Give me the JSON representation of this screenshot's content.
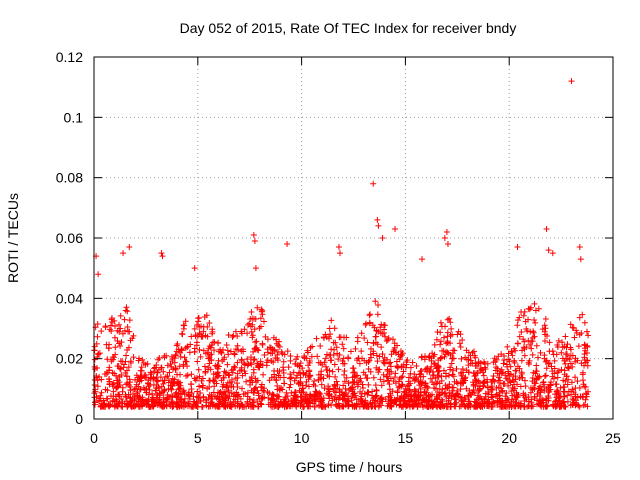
{
  "chart_data": {
    "type": "scatter",
    "title": "Day 052 of 2015, Rate Of TEC Index for receiver bndy",
    "xlabel": "GPS time / hours",
    "ylabel": "ROTI / TECUs",
    "xlim": [
      0,
      25
    ],
    "ylim": [
      0,
      0.12
    ],
    "x_ticks": [
      "0",
      "5",
      "10",
      "15",
      "20",
      "25"
    ],
    "y_ticks": [
      "0",
      "0.02",
      "0.04",
      "0.06",
      "0.08",
      "0.1",
      "0.12"
    ],
    "x_tick_values": [
      0,
      5,
      10,
      15,
      20,
      25
    ],
    "y_tick_values": [
      0,
      0.02,
      0.04,
      0.06,
      0.08,
      0.1,
      0.12
    ],
    "grid": true,
    "marker": "+",
    "color": "#ff0000",
    "x_data_range": [
      0,
      23.8
    ],
    "typical_y_range": [
      0.004,
      0.04
    ],
    "envelope": [
      {
        "x": 0.0,
        "y": 0.03
      },
      {
        "x": 0.5,
        "y": 0.035
      },
      {
        "x": 1.0,
        "y": 0.033
      },
      {
        "x": 1.5,
        "y": 0.04
      },
      {
        "x": 2.0,
        "y": 0.025
      },
      {
        "x": 2.5,
        "y": 0.018
      },
      {
        "x": 3.0,
        "y": 0.02
      },
      {
        "x": 3.5,
        "y": 0.022
      },
      {
        "x": 4.0,
        "y": 0.025
      },
      {
        "x": 4.5,
        "y": 0.035
      },
      {
        "x": 5.0,
        "y": 0.04
      },
      {
        "x": 5.5,
        "y": 0.035
      },
      {
        "x": 6.0,
        "y": 0.025
      },
      {
        "x": 6.5,
        "y": 0.028
      },
      {
        "x": 7.0,
        "y": 0.03
      },
      {
        "x": 7.5,
        "y": 0.035
      },
      {
        "x": 8.0,
        "y": 0.038
      },
      {
        "x": 8.5,
        "y": 0.03
      },
      {
        "x": 9.0,
        "y": 0.025
      },
      {
        "x": 9.5,
        "y": 0.022
      },
      {
        "x": 10.0,
        "y": 0.02
      },
      {
        "x": 10.5,
        "y": 0.025
      },
      {
        "x": 11.0,
        "y": 0.03
      },
      {
        "x": 11.5,
        "y": 0.035
      },
      {
        "x": 12.0,
        "y": 0.028
      },
      {
        "x": 12.5,
        "y": 0.025
      },
      {
        "x": 13.0,
        "y": 0.03
      },
      {
        "x": 13.5,
        "y": 0.04
      },
      {
        "x": 14.0,
        "y": 0.035
      },
      {
        "x": 14.5,
        "y": 0.025
      },
      {
        "x": 15.0,
        "y": 0.022
      },
      {
        "x": 15.5,
        "y": 0.02
      },
      {
        "x": 16.0,
        "y": 0.022
      },
      {
        "x": 16.5,
        "y": 0.028
      },
      {
        "x": 17.0,
        "y": 0.038
      },
      {
        "x": 17.5,
        "y": 0.03
      },
      {
        "x": 18.0,
        "y": 0.025
      },
      {
        "x": 18.5,
        "y": 0.022
      },
      {
        "x": 19.0,
        "y": 0.02
      },
      {
        "x": 19.5,
        "y": 0.022
      },
      {
        "x": 20.0,
        "y": 0.025
      },
      {
        "x": 20.5,
        "y": 0.035
      },
      {
        "x": 21.0,
        "y": 0.04
      },
      {
        "x": 21.5,
        "y": 0.038
      },
      {
        "x": 22.0,
        "y": 0.03
      },
      {
        "x": 22.5,
        "y": 0.025
      },
      {
        "x": 23.0,
        "y": 0.032
      },
      {
        "x": 23.5,
        "y": 0.035
      },
      {
        "x": 23.8,
        "y": 0.03
      }
    ],
    "outliers": [
      {
        "x": 0.1,
        "y": 0.054
      },
      {
        "x": 0.2,
        "y": 0.048
      },
      {
        "x": 1.4,
        "y": 0.055
      },
      {
        "x": 1.7,
        "y": 0.057
      },
      {
        "x": 3.25,
        "y": 0.055
      },
      {
        "x": 3.3,
        "y": 0.054
      },
      {
        "x": 4.85,
        "y": 0.05
      },
      {
        "x": 7.7,
        "y": 0.061
      },
      {
        "x": 7.75,
        "y": 0.059
      },
      {
        "x": 7.8,
        "y": 0.05
      },
      {
        "x": 9.3,
        "y": 0.058
      },
      {
        "x": 11.8,
        "y": 0.057
      },
      {
        "x": 11.85,
        "y": 0.055
      },
      {
        "x": 13.45,
        "y": 0.078
      },
      {
        "x": 13.65,
        "y": 0.066
      },
      {
        "x": 13.7,
        "y": 0.064
      },
      {
        "x": 13.9,
        "y": 0.06
      },
      {
        "x": 14.5,
        "y": 0.063
      },
      {
        "x": 15.8,
        "y": 0.053
      },
      {
        "x": 16.9,
        "y": 0.06
      },
      {
        "x": 17.0,
        "y": 0.062
      },
      {
        "x": 17.05,
        "y": 0.058
      },
      {
        "x": 20.4,
        "y": 0.057
      },
      {
        "x": 21.8,
        "y": 0.063
      },
      {
        "x": 21.9,
        "y": 0.056
      },
      {
        "x": 22.1,
        "y": 0.055
      },
      {
        "x": 23.0,
        "y": 0.112
      },
      {
        "x": 23.4,
        "y": 0.057
      },
      {
        "x": 23.45,
        "y": 0.053
      }
    ]
  }
}
